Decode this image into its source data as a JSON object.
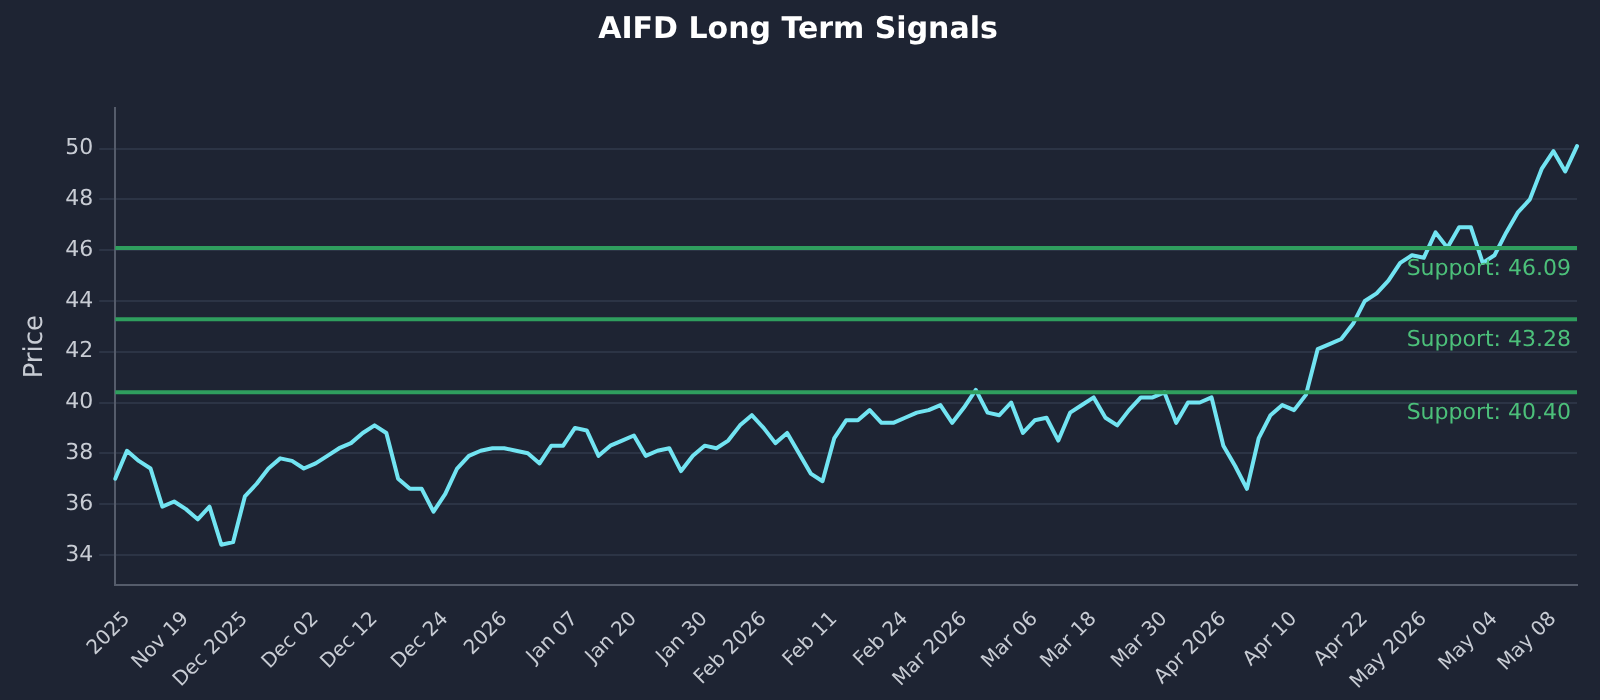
{
  "chart_data": {
    "type": "line",
    "title": "AIFD Long Term Signals",
    "ylabel": "Price",
    "categories": [
      null,
      "2025",
      null,
      null,
      null,
      null,
      "Nov 19",
      null,
      null,
      null,
      null,
      "Dec 2025",
      null,
      null,
      null,
      null,
      null,
      "Dec 02",
      null,
      null,
      null,
      null,
      "Dec 12",
      null,
      null,
      null,
      null,
      null,
      "Dec 24",
      null,
      null,
      null,
      null,
      "2026",
      null,
      null,
      null,
      null,
      null,
      "Jan 07",
      null,
      null,
      null,
      null,
      "Jan 20",
      null,
      null,
      null,
      null,
      null,
      "Jan 30",
      null,
      null,
      null,
      null,
      "Feb 2026",
      null,
      null,
      null,
      null,
      null,
      "Feb 11",
      null,
      null,
      null,
      null,
      null,
      "Feb 24",
      null,
      null,
      null,
      null,
      "Mar 2026",
      null,
      null,
      null,
      null,
      null,
      "Mar 06",
      null,
      null,
      null,
      null,
      "Mar 18",
      null,
      null,
      null,
      null,
      null,
      "Mar 30",
      null,
      null,
      null,
      null,
      "Apr 2026",
      null,
      null,
      null,
      null,
      null,
      "Apr 10",
      null,
      null,
      null,
      null,
      null,
      "Apr 22",
      null,
      null,
      null,
      null,
      "May 2026",
      null,
      null,
      null,
      null,
      null,
      "May 04",
      null,
      null,
      null,
      null,
      "May 08",
      null,
      null
    ],
    "series": [
      {
        "color": "#72e4f2",
        "values": [
          37.0,
          38.1,
          37.7,
          37.4,
          35.9,
          36.1,
          35.8,
          35.4,
          35.9,
          34.4,
          34.5,
          36.3,
          36.8,
          37.4,
          37.8,
          37.7,
          37.4,
          37.6,
          37.9,
          38.2,
          38.4,
          38.8,
          39.1,
          38.8,
          37.0,
          36.6,
          36.6,
          35.7,
          36.4,
          37.4,
          37.9,
          38.1,
          38.2,
          38.2,
          38.1,
          38.0,
          37.6,
          38.3,
          38.3,
          39.0,
          38.9,
          37.9,
          38.3,
          38.5,
          38.7,
          37.9,
          38.1,
          38.2,
          37.3,
          37.9,
          38.3,
          38.2,
          38.5,
          39.1,
          39.5,
          39.0,
          38.4,
          38.8,
          38.0,
          37.2,
          36.9,
          38.6,
          39.3,
          39.3,
          39.7,
          39.2,
          39.2,
          39.4,
          39.6,
          39.7,
          39.9,
          39.2,
          39.8,
          40.5,
          39.6,
          39.5,
          40.0,
          38.8,
          39.3,
          39.4,
          38.5,
          39.6,
          39.9,
          40.2,
          39.4,
          39.1,
          39.7,
          40.2,
          40.2,
          40.4,
          39.2,
          40.0,
          40.0,
          40.2,
          38.3,
          37.5,
          36.6,
          38.6,
          39.5,
          39.9,
          39.7,
          40.3,
          42.1,
          42.3,
          42.5,
          43.1,
          44.0,
          44.3,
          44.8,
          45.5,
          45.8,
          45.7,
          46.7,
          46.1,
          46.9,
          46.9,
          45.5,
          45.8,
          46.7,
          47.5,
          48.0,
          49.2,
          49.9,
          49.1,
          50.1
        ]
      }
    ],
    "ylim": [
      32.8,
      51.6
    ],
    "yticks": [
      34,
      36,
      38,
      40,
      42,
      44,
      46,
      48,
      50
    ],
    "grid": "y",
    "legend": false,
    "marker": "none",
    "line_style": "solid",
    "ref_lines": [
      {
        "axis": "y",
        "value": 46.09,
        "label": "Support: 46.09",
        "color": "#2f9e5e"
      },
      {
        "axis": "y",
        "value": 43.28,
        "label": "Support: 43.28",
        "color": "#2f9e5e"
      },
      {
        "axis": "y",
        "value": 40.4,
        "label": "Support: 40.40",
        "color": "#2f9e5e"
      }
    ]
  }
}
